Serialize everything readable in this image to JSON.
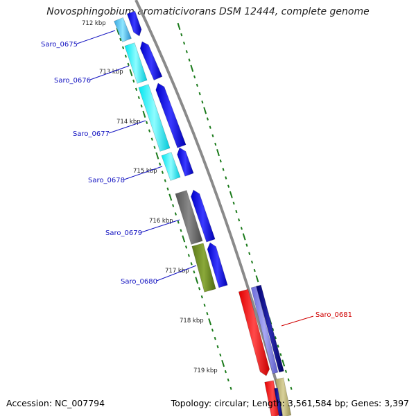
{
  "title": "Novosphingobium aromaticivorans DSM 12444, complete genome",
  "footer": {
    "accession": "Accession: NC_007794",
    "topology": "Topology: circular; Length: 3,561,584 bp; Genes: 3,397"
  },
  "colors": {
    "backbone": "#8a8a8a",
    "tick": "#1a7a1a",
    "gene_label_blue": "#1010c0",
    "gene_label_red": "#d00000"
  },
  "kbp_ticks": [
    {
      "text": "712 kbp"
    },
    {
      "text": "713 kbp"
    },
    {
      "text": "714 kbp"
    },
    {
      "text": "715 kbp"
    },
    {
      "text": "716 kbp"
    },
    {
      "text": "717 kbp"
    },
    {
      "text": "718 kbp"
    },
    {
      "text": "719 kbp"
    }
  ],
  "genes": [
    {
      "name": "Saro_0675",
      "label_color": "blue"
    },
    {
      "name": "Saro_0676",
      "label_color": "blue"
    },
    {
      "name": "Saro_0677",
      "label_color": "blue"
    },
    {
      "name": "Saro_0678",
      "label_color": "blue"
    },
    {
      "name": "Saro_0679",
      "label_color": "blue"
    },
    {
      "name": "Saro_0680",
      "label_color": "blue"
    },
    {
      "name": "Saro_0681",
      "label_color": "red"
    }
  ]
}
